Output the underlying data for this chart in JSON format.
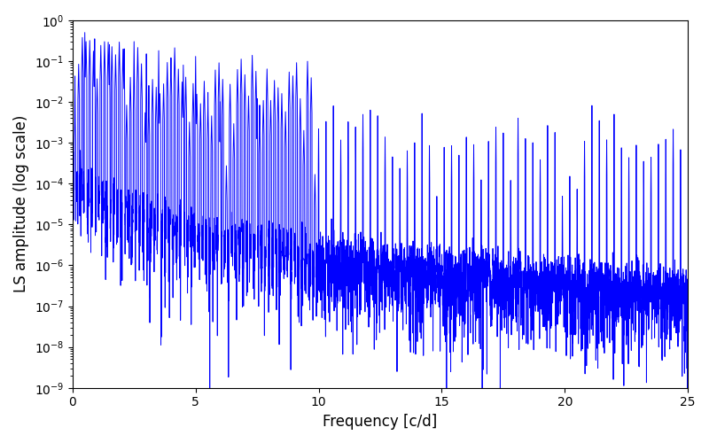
{
  "title": "",
  "xlabel": "Frequency [c/d]",
  "ylabel": "LS amplitude (log scale)",
  "xlim": [
    0,
    25
  ],
  "ylim_log": [
    -9,
    0
  ],
  "line_color": "#0000ff",
  "line_width": 0.7,
  "freq_max": 25,
  "n_points": 5000,
  "seed": 42,
  "background_color": "#ffffff",
  "figsize": [
    8.0,
    5.0
  ],
  "dpi": 100
}
